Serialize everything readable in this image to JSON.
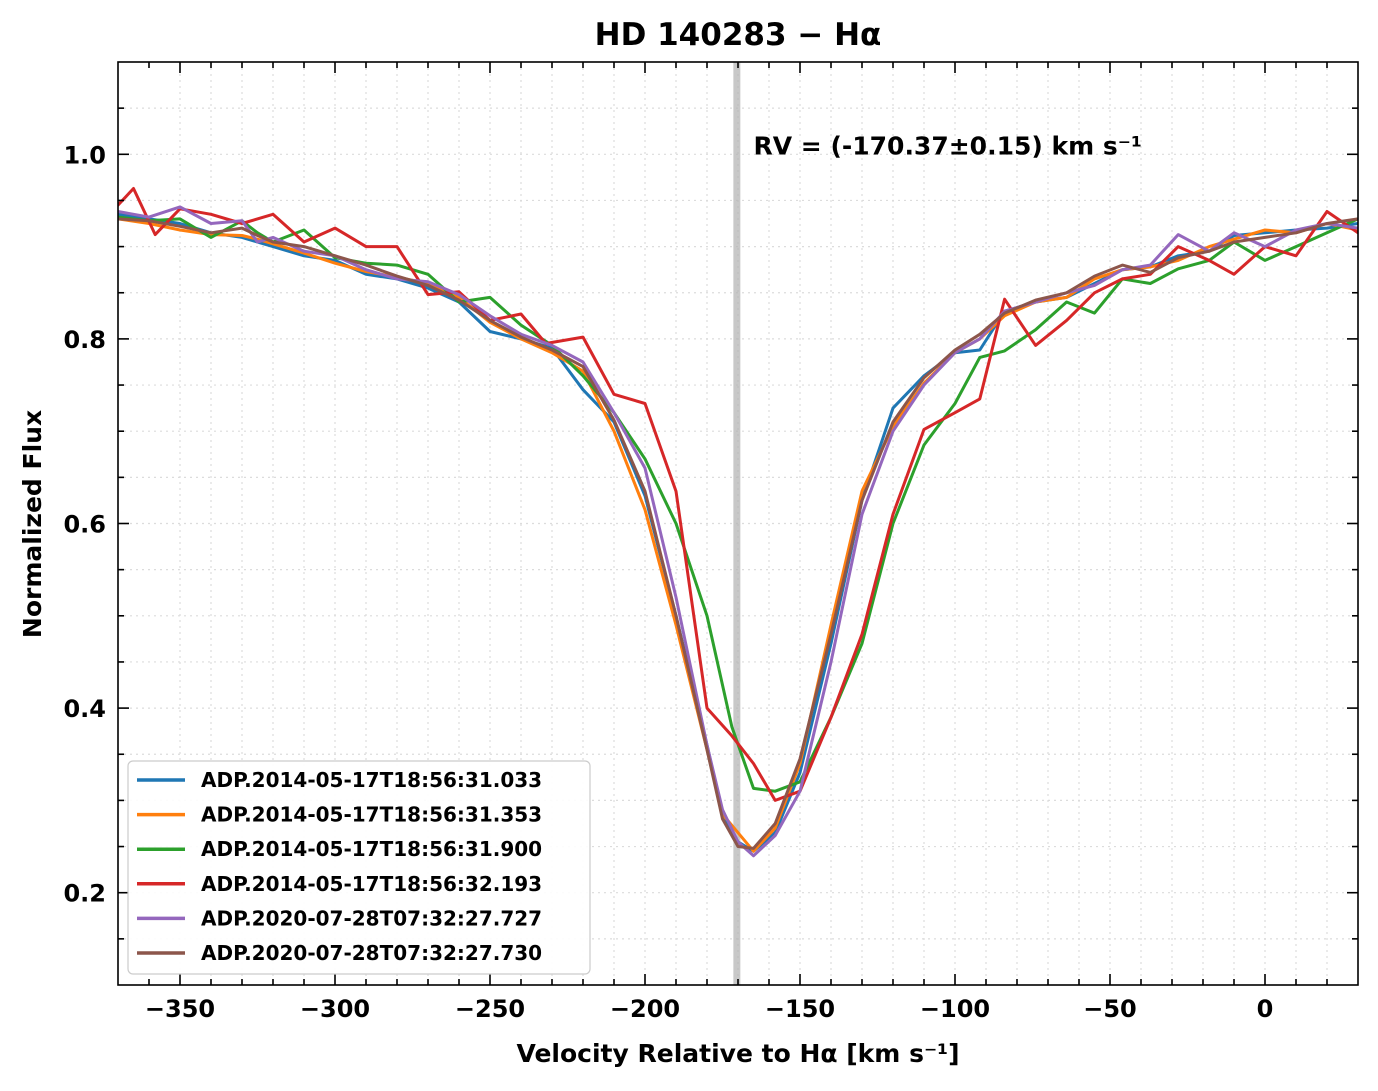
{
  "chart_data": {
    "type": "line",
    "title": "HD 140283 − Hα",
    "xlabel": "Velocity Relative to Hα [km s⁻¹]",
    "ylabel": "Normalized Flux",
    "xlim": [
      -370,
      30
    ],
    "ylim": [
      0.1,
      1.1
    ],
    "x_ticks": [
      -350,
      -300,
      -250,
      -200,
      -150,
      -100,
      -50,
      0
    ],
    "x_tick_labels": [
      "−350",
      "−300",
      "−250",
      "−200",
      "−150",
      "−100",
      "−50",
      "0"
    ],
    "y_ticks": [
      0.2,
      0.4,
      0.6,
      0.8,
      1.0
    ],
    "y_tick_labels": [
      "0.2",
      "0.4",
      "0.6",
      "0.8",
      "1.0"
    ],
    "grid": true,
    "legend_position": "lower-left",
    "rv_line": {
      "x": -170.37,
      "color": "#b0b0b0"
    },
    "annotation": {
      "text": "RV = (-170.37±0.15) km s⁻¹",
      "x": -165,
      "y": 1.0
    },
    "series": [
      {
        "name": "ADP.2014-05-17T18:56:31.033",
        "color": "#1f77b4",
        "x": [
          -370,
          -360,
          -350,
          -340,
          -330,
          -325,
          -320,
          -310,
          -300,
          -290,
          -280,
          -270,
          -260,
          -250,
          -240,
          -230,
          -220,
          -210,
          -200,
          -190,
          -180,
          -175,
          -170,
          -165,
          -158,
          -150,
          -140,
          -130,
          -120,
          -110,
          -100,
          -92,
          -84,
          -74,
          -64,
          -55,
          -46,
          -37,
          -28,
          -18,
          -10,
          0,
          10,
          20,
          30
        ],
        "y": [
          0.935,
          0.93,
          0.925,
          0.915,
          0.91,
          0.905,
          0.9,
          0.89,
          0.885,
          0.87,
          0.865,
          0.855,
          0.84,
          0.808,
          0.8,
          0.79,
          0.745,
          0.71,
          0.63,
          0.5,
          0.36,
          0.285,
          0.255,
          0.245,
          0.265,
          0.33,
          0.47,
          0.625,
          0.725,
          0.76,
          0.785,
          0.788,
          0.83,
          0.84,
          0.845,
          0.86,
          0.875,
          0.878,
          0.89,
          0.895,
          0.912,
          0.915,
          0.918,
          0.92,
          0.925
        ]
      },
      {
        "name": "ADP.2014-05-17T18:56:31.353",
        "color": "#ff7f0e",
        "x": [
          -370,
          -360,
          -350,
          -340,
          -330,
          -325,
          -320,
          -310,
          -300,
          -290,
          -280,
          -270,
          -260,
          -250,
          -240,
          -230,
          -220,
          -210,
          -200,
          -190,
          -180,
          -175,
          -170,
          -165,
          -158,
          -150,
          -140,
          -130,
          -120,
          -110,
          -100,
          -92,
          -84,
          -74,
          -64,
          -55,
          -46,
          -37,
          -28,
          -18,
          -10,
          0,
          10,
          20,
          30
        ],
        "y": [
          0.93,
          0.925,
          0.918,
          0.913,
          0.912,
          0.908,
          0.903,
          0.893,
          0.882,
          0.873,
          0.867,
          0.86,
          0.845,
          0.818,
          0.8,
          0.785,
          0.765,
          0.7,
          0.615,
          0.49,
          0.355,
          0.285,
          0.265,
          0.245,
          0.27,
          0.34,
          0.49,
          0.635,
          0.705,
          0.752,
          0.785,
          0.8,
          0.825,
          0.84,
          0.845,
          0.865,
          0.875,
          0.878,
          0.885,
          0.9,
          0.908,
          0.918,
          0.915,
          0.925,
          0.918
        ]
      },
      {
        "name": "ADP.2014-05-17T18:56:31.900",
        "color": "#2ca02c",
        "x": [
          -370,
          -360,
          -350,
          -340,
          -330,
          -325,
          -320,
          -310,
          -300,
          -290,
          -280,
          -270,
          -260,
          -250,
          -240,
          -230,
          -220,
          -210,
          -200,
          -190,
          -180,
          -172,
          -165,
          -158,
          -150,
          -140,
          -130,
          -120,
          -110,
          -100,
          -92,
          -84,
          -74,
          -64,
          -55,
          -46,
          -37,
          -28,
          -18,
          -10,
          0,
          10,
          20,
          30
        ],
        "y": [
          0.932,
          0.928,
          0.93,
          0.91,
          0.928,
          0.915,
          0.905,
          0.918,
          0.888,
          0.882,
          0.88,
          0.87,
          0.84,
          0.845,
          0.815,
          0.793,
          0.76,
          0.72,
          0.67,
          0.6,
          0.5,
          0.38,
          0.313,
          0.31,
          0.32,
          0.39,
          0.47,
          0.6,
          0.685,
          0.73,
          0.78,
          0.787,
          0.81,
          0.84,
          0.828,
          0.865,
          0.86,
          0.876,
          0.885,
          0.905,
          0.885,
          0.9,
          0.915,
          0.93
        ]
      },
      {
        "name": "ADP.2014-05-17T18:56:32.193",
        "color": "#d62728",
        "x": [
          -370,
          -365,
          -358,
          -350,
          -340,
          -330,
          -320,
          -310,
          -300,
          -290,
          -280,
          -270,
          -260,
          -250,
          -240,
          -232,
          -220,
          -210,
          -200,
          -190,
          -180,
          -172,
          -165,
          -158,
          -150,
          -140,
          -130,
          -120,
          -110,
          -100,
          -92,
          -84,
          -74,
          -64,
          -55,
          -46,
          -37,
          -28,
          -18,
          -10,
          0,
          10,
          20,
          30
        ],
        "y": [
          0.945,
          0.963,
          0.913,
          0.941,
          0.935,
          0.925,
          0.935,
          0.905,
          0.92,
          0.9,
          0.9,
          0.848,
          0.851,
          0.82,
          0.827,
          0.795,
          0.802,
          0.74,
          0.73,
          0.635,
          0.4,
          0.37,
          0.34,
          0.3,
          0.31,
          0.39,
          0.48,
          0.61,
          0.702,
          0.72,
          0.735,
          0.843,
          0.793,
          0.82,
          0.85,
          0.865,
          0.87,
          0.9,
          0.885,
          0.87,
          0.9,
          0.89,
          0.938,
          0.915
        ]
      },
      {
        "name": "ADP.2020-07-28T07:32:27.727",
        "color": "#9467bd",
        "x": [
          -370,
          -360,
          -350,
          -340,
          -330,
          -325,
          -320,
          -310,
          -300,
          -290,
          -280,
          -270,
          -260,
          -250,
          -240,
          -230,
          -220,
          -210,
          -200,
          -190,
          -180,
          -175,
          -170,
          -165,
          -158,
          -150,
          -140,
          -130,
          -120,
          -110,
          -100,
          -92,
          -84,
          -74,
          -64,
          -55,
          -46,
          -37,
          -28,
          -18,
          -10,
          0,
          10,
          20,
          30
        ],
        "y": [
          0.938,
          0.932,
          0.943,
          0.925,
          0.928,
          0.905,
          0.91,
          0.895,
          0.89,
          0.875,
          0.865,
          0.862,
          0.848,
          0.825,
          0.805,
          0.793,
          0.775,
          0.72,
          0.66,
          0.52,
          0.36,
          0.29,
          0.255,
          0.24,
          0.262,
          0.31,
          0.45,
          0.61,
          0.7,
          0.75,
          0.785,
          0.8,
          0.83,
          0.84,
          0.85,
          0.858,
          0.875,
          0.88,
          0.913,
          0.895,
          0.915,
          0.9,
          0.918,
          0.925,
          0.92
        ]
      },
      {
        "name": "ADP.2020-07-28T07:32:27.730",
        "color": "#8c564b",
        "x": [
          -370,
          -360,
          -350,
          -340,
          -330,
          -325,
          -320,
          -310,
          -300,
          -290,
          -280,
          -270,
          -260,
          -250,
          -240,
          -230,
          -220,
          -210,
          -200,
          -190,
          -180,
          -175,
          -170,
          -165,
          -158,
          -150,
          -140,
          -130,
          -120,
          -110,
          -100,
          -92,
          -84,
          -74,
          -64,
          -55,
          -46,
          -37,
          -28,
          -18,
          -10,
          0,
          10,
          20,
          30
        ],
        "y": [
          0.93,
          0.928,
          0.922,
          0.915,
          0.92,
          0.912,
          0.905,
          0.9,
          0.89,
          0.88,
          0.868,
          0.858,
          0.842,
          0.82,
          0.802,
          0.788,
          0.77,
          0.712,
          0.635,
          0.5,
          0.355,
          0.28,
          0.25,
          0.248,
          0.275,
          0.345,
          0.48,
          0.625,
          0.71,
          0.758,
          0.788,
          0.805,
          0.828,
          0.842,
          0.85,
          0.868,
          0.88,
          0.872,
          0.888,
          0.895,
          0.905,
          0.91,
          0.915,
          0.925,
          0.93
        ]
      }
    ]
  }
}
